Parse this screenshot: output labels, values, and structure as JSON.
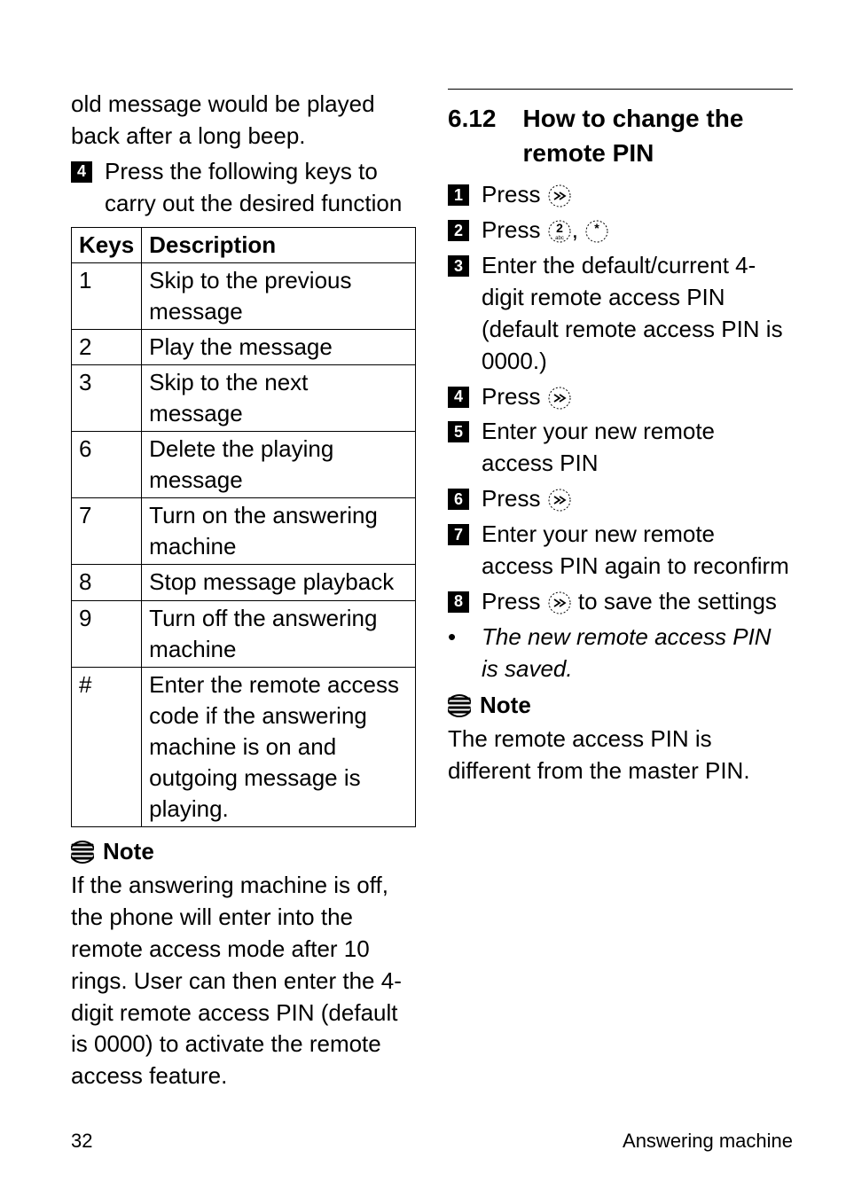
{
  "left": {
    "intro": "old message would be played back after a long beep.",
    "step4": {
      "num": "4",
      "text": "Press the following keys to carry out the desired function"
    },
    "table": {
      "headers": [
        "Keys",
        "Description"
      ],
      "rows": [
        [
          "1",
          "Skip to the previous message"
        ],
        [
          "2",
          "Play the message"
        ],
        [
          "3",
          "Skip to the next message"
        ],
        [
          "6",
          "Delete the playing message"
        ],
        [
          "7",
          "Turn on the answering machine"
        ],
        [
          "8",
          "Stop message playback"
        ],
        [
          "9",
          "Turn off the answering machine"
        ],
        [
          "#",
          "Enter the remote access code if the answering machine is on and outgoing message is playing."
        ]
      ]
    },
    "note_label": "Note",
    "note_body": "If the answering machine is off, the phone will enter into the remote access mode after 10 rings. User can then enter the 4-digit remote access PIN (default is 0000) to activate the remote access feature."
  },
  "right": {
    "section_num": "6.12",
    "section_title": "How to change the remote PIN",
    "steps": [
      {
        "num": "1",
        "pre": "Press ",
        "icon": "menu",
        "post": ""
      },
      {
        "num": "2",
        "pre": "Press ",
        "icon": "2star",
        "post": ""
      },
      {
        "num": "3",
        "pre": "",
        "icon": "",
        "post": "Enter the default/current 4-digit remote access PIN (default remote access PIN is 0000.)"
      },
      {
        "num": "4",
        "pre": "Press ",
        "icon": "menu",
        "post": ""
      },
      {
        "num": "5",
        "pre": "",
        "icon": "",
        "post": "Enter your new remote access PIN"
      },
      {
        "num": "6",
        "pre": "Press ",
        "icon": "menu",
        "post": ""
      },
      {
        "num": "7",
        "pre": "",
        "icon": "",
        "post": "Enter your new remote access PIN again to reconfirm"
      },
      {
        "num": "8",
        "pre": "Press ",
        "icon": "menu",
        "post": " to save the settings"
      }
    ],
    "bullet": "The new remote access PIN is saved.",
    "note_label": "Note",
    "note_body": "The remote access PIN is different from the master PIN."
  },
  "footer": {
    "page": "32",
    "section": "Answering machine"
  },
  "colors": {
    "text": "#000000",
    "bg": "#ffffff"
  }
}
